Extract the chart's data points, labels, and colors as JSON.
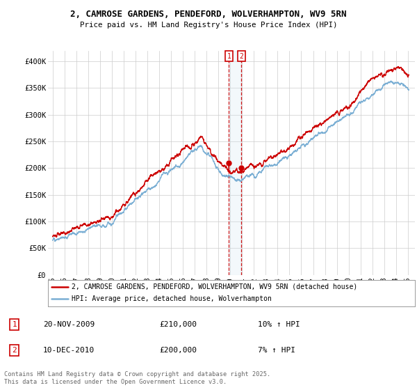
{
  "title_line1": "2, CAMROSE GARDENS, PENDEFORD, WOLVERHAMPTON, WV9 5RN",
  "title_line2": "Price paid vs. HM Land Registry's House Price Index (HPI)",
  "ylim": [
    0,
    420000
  ],
  "yticks": [
    0,
    50000,
    100000,
    150000,
    200000,
    250000,
    300000,
    350000,
    400000
  ],
  "ytick_labels": [
    "£0",
    "£50K",
    "£100K",
    "£150K",
    "£200K",
    "£250K",
    "£300K",
    "£350K",
    "£400K"
  ],
  "red_color": "#cc0000",
  "blue_color": "#7bafd4",
  "shade_color": "#d0e4f0",
  "dashed_color": "#cc0000",
  "marker1_year": 2009.886,
  "marker2_year": 2010.938,
  "marker1_price": 210000,
  "marker2_price": 200000,
  "annotation1": [
    "1",
    "20-NOV-2009",
    "£210,000",
    "10% ↑ HPI"
  ],
  "annotation2": [
    "2",
    "10-DEC-2010",
    "£200,000",
    "7% ↑ HPI"
  ],
  "legend_label1": "2, CAMROSE GARDENS, PENDEFORD, WOLVERHAMPTON, WV9 5RN (detached house)",
  "legend_label2": "HPI: Average price, detached house, Wolverhampton",
  "footer": "Contains HM Land Registry data © Crown copyright and database right 2025.\nThis data is licensed under the Open Government Licence v3.0.",
  "background_color": "#ffffff",
  "grid_color": "#cccccc",
  "xstart": 1995,
  "xend": 2025
}
